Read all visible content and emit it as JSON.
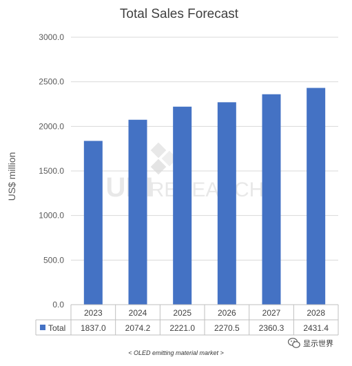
{
  "chart_data": {
    "type": "bar",
    "title": "Total Sales Forecast",
    "ylabel": "US$ million",
    "xlabel": "",
    "categories": [
      "2023",
      "2024",
      "2025",
      "2026",
      "2027",
      "2028"
    ],
    "series": [
      {
        "name": "Total",
        "values": [
          1837.0,
          2074.2,
          2221.0,
          2270.5,
          2360.3,
          2431.4
        ]
      }
    ],
    "value_labels": [
      "1837.0",
      "2074.2",
      "2221.0",
      "2270.5",
      "2360.3",
      "2431.4"
    ],
    "ylim": [
      0,
      3000
    ],
    "yticks": [
      0,
      500,
      1000,
      1500,
      2000,
      2500,
      3000
    ],
    "ytick_labels": [
      "0.0",
      "500.0",
      "1000.0",
      "1500.0",
      "2000.0",
      "2500.0",
      "3000.0"
    ],
    "grid": true,
    "legend": "data-table-left",
    "bar_color": "#4472C4"
  },
  "watermark": {
    "text": "RESEARCH",
    "logo_text": "UBI"
  },
  "caption": "< OLED emitting material market >",
  "wechat_label": "显示世界",
  "icons": {
    "wechat": "wechat-icon"
  }
}
